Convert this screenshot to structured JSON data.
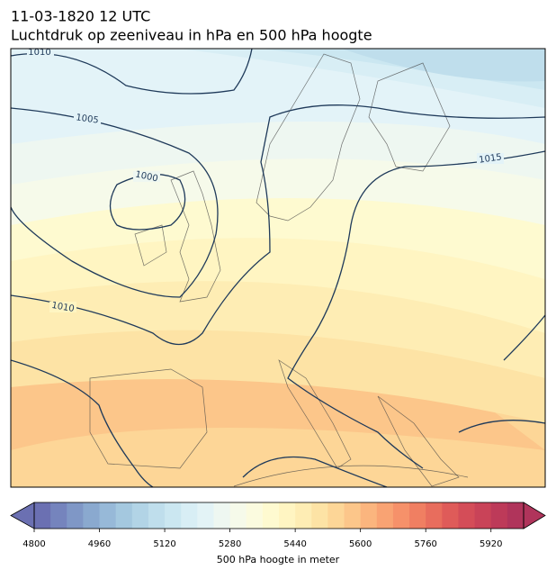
{
  "title": "11-03-1820 12 UTC",
  "subtitle": "Luchtdruk op zeeniveau in hPa en 500 hPa hoogte",
  "isobar_labels": [
    1010,
    1005,
    1000,
    1015,
    1010
  ],
  "colorbar": {
    "label": "500 hPa hoogte in meter",
    "range": [
      4800,
      6000
    ],
    "ticks": [
      4800,
      4960,
      5120,
      5280,
      5440,
      5600,
      5760,
      5920
    ],
    "colors": [
      "#6b70b2",
      "#7584bd",
      "#7f97c6",
      "#8aa9cf",
      "#97b9d8",
      "#a4c8df",
      "#b2d4e6",
      "#bfdeec",
      "#cbe7f1",
      "#d8eef5",
      "#e3f3f6",
      "#eef7f1",
      "#f6faea",
      "#fbfbdf",
      "#fefad0",
      "#fff5c2",
      "#feedb4",
      "#fde3a5",
      "#fdd697",
      "#fcc68a",
      "#fbb57e",
      "#f9a373",
      "#f6916a",
      "#f07f62",
      "#e86d5d",
      "#df5b59",
      "#d44d58",
      "#c94358",
      "#bd3a59",
      "#b0345b"
    ]
  }
}
